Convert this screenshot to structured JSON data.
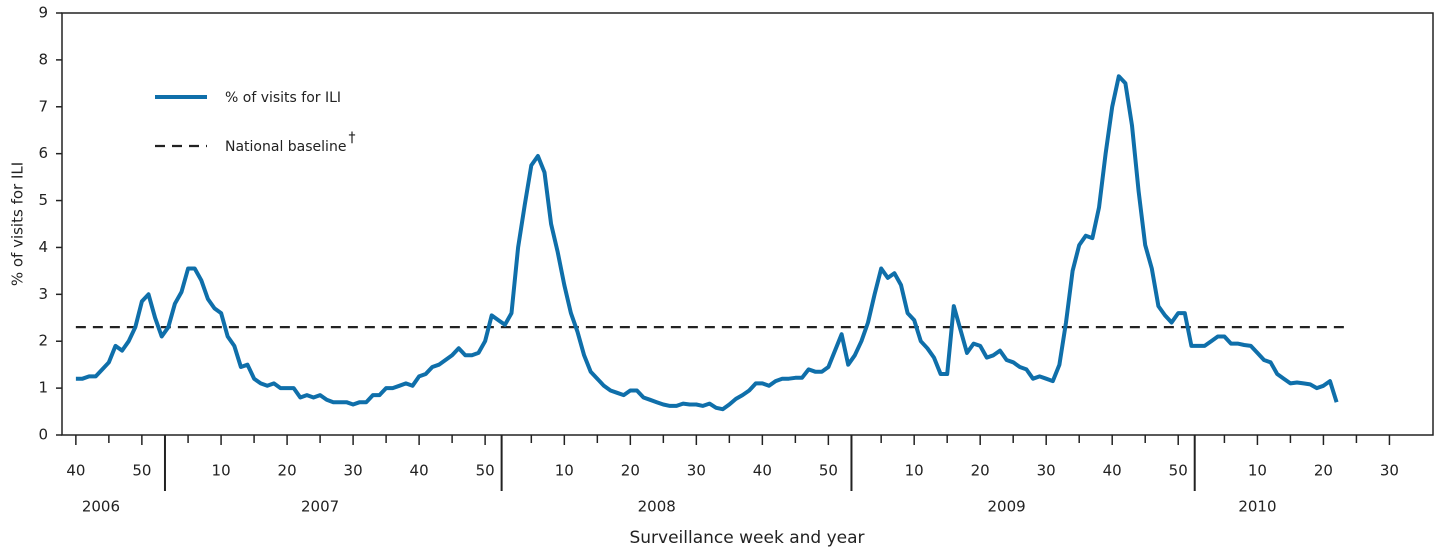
{
  "chart_data": {
    "type": "line",
    "y_label": "% of visits for ILI",
    "x_label": "Surveillance week and year",
    "xlim": [
      -2.1,
      205.6
    ],
    "ylim": [
      0,
      9
    ],
    "yticks": [
      0,
      1,
      2,
      3,
      4,
      5,
      6,
      7,
      8,
      9
    ],
    "xticks": [
      {
        "value": 0,
        "label": "40"
      },
      {
        "value": 10,
        "label": "50"
      },
      {
        "value": 22,
        "label": "10"
      },
      {
        "value": 32,
        "label": "20"
      },
      {
        "value": 42,
        "label": "30"
      },
      {
        "value": 52,
        "label": "40"
      },
      {
        "value": 62,
        "label": "50"
      },
      {
        "value": 74,
        "label": "10"
      },
      {
        "value": 84,
        "label": "20"
      },
      {
        "value": 94,
        "label": "30"
      },
      {
        "value": 104,
        "label": "40"
      },
      {
        "value": 114,
        "label": "50"
      },
      {
        "value": 127,
        "label": "10"
      },
      {
        "value": 137,
        "label": "20"
      },
      {
        "value": 147,
        "label": "30"
      },
      {
        "value": 157,
        "label": "40"
      },
      {
        "value": 167,
        "label": "50"
      },
      {
        "value": 179,
        "label": "10"
      },
      {
        "value": 189,
        "label": "20"
      },
      {
        "value": 199,
        "label": "30"
      }
    ],
    "xminor_ticks": [
      5,
      17,
      27,
      37,
      47,
      57,
      69,
      79,
      89,
      99,
      109,
      122,
      132,
      142,
      152,
      162,
      174,
      184,
      194
    ],
    "year_dividers": [
      13.5,
      64.5,
      117.5,
      169.5
    ],
    "years": [
      {
        "value": 3.8,
        "label": "2006"
      },
      {
        "value": 37,
        "label": "2007"
      },
      {
        "value": 88,
        "label": "2008"
      },
      {
        "value": 141,
        "label": "2009"
      },
      {
        "value": 179,
        "label": "2010"
      }
    ],
    "x": [
      0,
      1,
      2,
      3,
      4,
      5,
      6,
      7,
      8,
      9,
      10,
      11,
      12,
      13,
      14,
      15,
      16,
      17,
      18,
      19,
      20,
      21,
      22,
      23,
      24,
      25,
      26,
      27,
      28,
      29,
      30,
      31,
      32,
      33,
      34,
      35,
      36,
      37,
      38,
      39,
      40,
      41,
      42,
      43,
      44,
      45,
      46,
      47,
      48,
      49,
      50,
      51,
      52,
      53,
      54,
      55,
      56,
      57,
      58,
      59,
      60,
      61,
      62,
      63,
      64,
      65,
      66,
      67,
      68,
      69,
      70,
      71,
      72,
      73,
      74,
      75,
      76,
      77,
      78,
      79,
      80,
      81,
      82,
      83,
      84,
      85,
      86,
      87,
      88,
      89,
      90,
      91,
      92,
      93,
      94,
      95,
      96,
      97,
      98,
      99,
      100,
      101,
      102,
      103,
      104,
      105,
      106,
      107,
      108,
      109,
      110,
      111,
      112,
      113,
      114,
      115,
      116,
      117,
      118,
      119,
      120,
      121,
      122,
      123,
      124,
      125,
      126,
      127,
      128,
      129,
      130,
      131,
      132,
      133,
      134,
      135,
      136,
      137,
      138,
      139,
      140,
      141,
      142,
      143,
      144,
      145,
      146,
      147,
      148,
      149,
      150,
      151,
      152,
      153,
      154,
      155,
      156,
      157,
      158,
      159,
      160,
      161,
      162,
      163,
      164,
      165,
      166,
      167,
      168,
      169,
      170,
      171,
      172,
      173,
      174,
      175,
      176,
      177,
      178,
      179,
      180,
      181,
      182,
      183,
      184,
      185,
      186,
      187,
      188,
      189,
      190,
      191
    ],
    "series": [
      {
        "name": "% of visits for  ILI",
        "color": "#0f6faa",
        "values": [
          1.2,
          1.2,
          1.25,
          1.25,
          1.4,
          1.55,
          1.9,
          1.8,
          2.0,
          2.3,
          2.85,
          3.0,
          2.5,
          2.1,
          2.3,
          2.8,
          3.05,
          3.55,
          3.55,
          3.3,
          2.9,
          2.7,
          2.6,
          2.1,
          1.9,
          1.45,
          1.5,
          1.2,
          1.1,
          1.05,
          1.1,
          1.0,
          1.0,
          1.0,
          0.8,
          0.85,
          0.8,
          0.85,
          0.75,
          0.7,
          0.7,
          0.7,
          0.65,
          0.7,
          0.7,
          0.85,
          0.85,
          1.0,
          1.0,
          1.05,
          1.1,
          1.05,
          1.25,
          1.3,
          1.45,
          1.5,
          1.6,
          1.7,
          1.85,
          1.7,
          1.7,
          1.75,
          2.0,
          2.55,
          2.45,
          2.35,
          2.6,
          4.0,
          4.9,
          5.75,
          5.95,
          5.6,
          4.5,
          3.9,
          3.2,
          2.6,
          2.2,
          1.7,
          1.35,
          1.2,
          1.05,
          0.95,
          0.9,
          0.85,
          0.95,
          0.95,
          0.8,
          0.75,
          0.7,
          0.65,
          0.62,
          0.62,
          0.67,
          0.65,
          0.65,
          0.62,
          0.67,
          0.58,
          0.55,
          0.65,
          0.77,
          0.85,
          0.95,
          1.1,
          1.1,
          1.05,
          1.15,
          1.2,
          1.2,
          1.22,
          1.22,
          1.4,
          1.35,
          1.35,
          1.45,
          1.8,
          2.15,
          1.5,
          1.7,
          2.0,
          2.4,
          3.0,
          3.55,
          3.35,
          3.45,
          3.2,
          2.6,
          2.45,
          2.0,
          1.85,
          1.65,
          1.3,
          1.3,
          2.75,
          2.25,
          1.75,
          1.95,
          1.9,
          1.65,
          1.7,
          1.8,
          1.6,
          1.55,
          1.45,
          1.4,
          1.2,
          1.25,
          1.2,
          1.15,
          1.5,
          2.4,
          3.5,
          4.05,
          4.25,
          4.2,
          4.85,
          6.0,
          7.0,
          7.65,
          7.5,
          6.6,
          5.2,
          4.05,
          3.55,
          2.75,
          2.55,
          2.4,
          2.6,
          2.6,
          1.9,
          1.9,
          1.9,
          2.0,
          2.1,
          2.1,
          1.95,
          1.95,
          1.92,
          1.9,
          1.75,
          1.6,
          1.55,
          1.3,
          1.2,
          1.1,
          1.12,
          1.1,
          1.08,
          1.0,
          1.05,
          1.15,
          0.7
        ]
      }
    ],
    "baseline": {
      "name": "National baseline",
      "footnote_mark": "†",
      "value": 2.3,
      "x_range": [
        0,
        193
      ],
      "color": "#222222"
    }
  }
}
